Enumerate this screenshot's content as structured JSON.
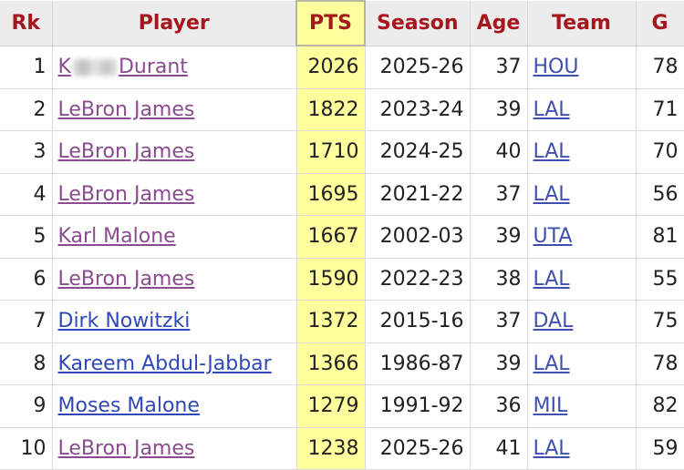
{
  "table": {
    "columns": [
      "Rk",
      "Player",
      "PTS",
      "Season",
      "Age",
      "Team",
      "G"
    ],
    "rows": [
      {
        "rk": 1,
        "player": [
          "K",
          "Durant"
        ],
        "visited": true,
        "pts": 2026,
        "season": "2025-26",
        "age": 37,
        "team": "HOU",
        "g": 78
      },
      {
        "rk": 2,
        "player": "LeBron James",
        "visited": true,
        "pts": 1822,
        "season": "2023-24",
        "age": 39,
        "team": "LAL",
        "g": 71
      },
      {
        "rk": 3,
        "player": "LeBron James",
        "visited": true,
        "pts": 1710,
        "season": "2024-25",
        "age": 40,
        "team": "LAL",
        "g": 70
      },
      {
        "rk": 4,
        "player": "LeBron James",
        "visited": true,
        "pts": 1695,
        "season": "2021-22",
        "age": 37,
        "team": "LAL",
        "g": 56
      },
      {
        "rk": 5,
        "player": "Karl Malone",
        "visited": true,
        "pts": 1667,
        "season": "2002-03",
        "age": 39,
        "team": "UTA",
        "g": 81
      },
      {
        "rk": 6,
        "player": "LeBron James",
        "visited": true,
        "pts": 1590,
        "season": "2022-23",
        "age": 38,
        "team": "LAL",
        "g": 55
      },
      {
        "rk": 7,
        "player": "Dirk Nowitzki",
        "visited": false,
        "pts": 1372,
        "season": "2015-16",
        "age": 37,
        "team": "DAL",
        "g": 75
      },
      {
        "rk": 8,
        "player": "Kareem Abdul-Jabbar",
        "visited": false,
        "pts": 1366,
        "season": "1986-87",
        "age": 39,
        "team": "LAL",
        "g": 78
      },
      {
        "rk": 9,
        "player": "Moses Malone",
        "visited": false,
        "pts": 1279,
        "season": "1991-92",
        "age": 36,
        "team": "MIL",
        "g": 82
      },
      {
        "rk": 10,
        "player": "LeBron James",
        "visited": true,
        "pts": 1238,
        "season": "2025-26",
        "age": 41,
        "team": "LAL",
        "g": 59
      }
    ]
  }
}
